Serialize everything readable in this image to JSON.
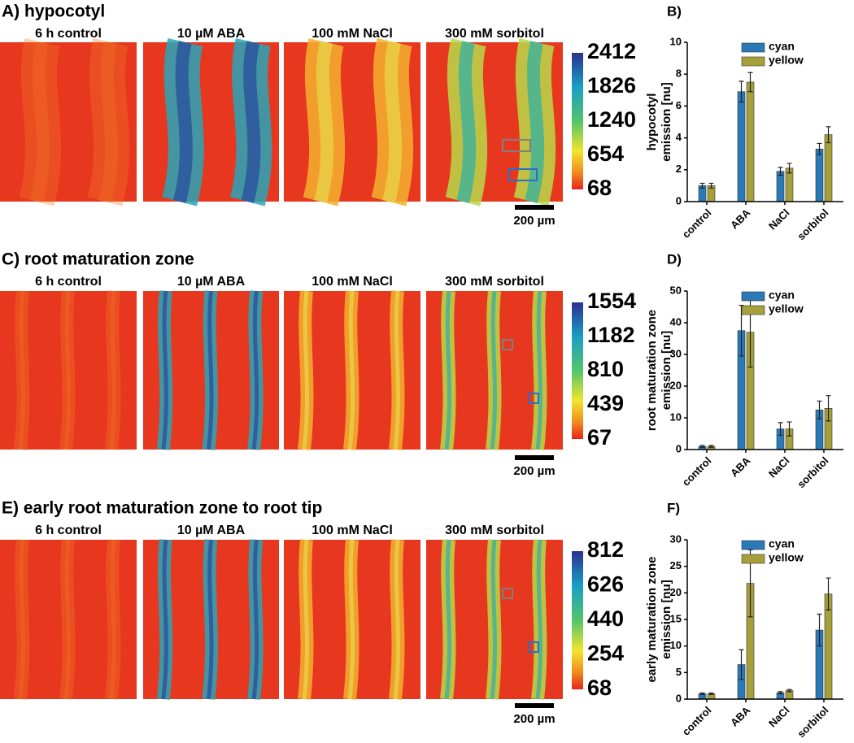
{
  "panels": [
    {
      "label": "A) hypocotyl",
      "images": [
        "6 h control",
        "10 µM ABA",
        "100 mM NaCl",
        "300 mM sorbitol"
      ],
      "clim": [
        68,
        2412
      ],
      "colorbar_ticks": [
        2412,
        1826,
        1240,
        654,
        68
      ],
      "scale_bar": "200 µm"
    },
    {
      "label": "C) root maturation zone",
      "images": [
        "6 h control",
        "10 µM ABA",
        "100 mM NaCl",
        "300 mM sorbitol"
      ],
      "clim": [
        67,
        1554
      ],
      "colorbar_ticks": [
        1554,
        1182,
        810,
        439,
        67
      ],
      "scale_bar": "200 µm"
    },
    {
      "label": "E) early root maturation zone to root tip",
      "images": [
        "6 h control",
        "10 µM ABA",
        "100 mM NaCl",
        "300 mM sorbitol"
      ],
      "clim": [
        68,
        812
      ],
      "colorbar_ticks": [
        812,
        626,
        440,
        254,
        68
      ],
      "scale_bar": "200 µm"
    }
  ],
  "chart_data": [
    {
      "type": "bar",
      "label": "B)",
      "ylabel": [
        "hypocotyl",
        "emission [nu]"
      ],
      "categories": [
        "control",
        "ABA",
        "NaCl",
        "sorbitol"
      ],
      "series": [
        {
          "name": "cyan",
          "color": "#2a7ab8",
          "values": [
            1.0,
            6.9,
            1.9,
            3.3
          ],
          "errors": [
            0.15,
            0.65,
            0.25,
            0.35
          ]
        },
        {
          "name": "yellow",
          "color": "#a6a03a",
          "values": [
            1.0,
            7.5,
            2.1,
            4.2
          ],
          "errors": [
            0.15,
            0.6,
            0.3,
            0.5
          ]
        }
      ],
      "ylim": [
        0,
        10
      ],
      "yticks": [
        0,
        2,
        4,
        6,
        8,
        10
      ]
    },
    {
      "type": "bar",
      "label": "D)",
      "ylabel": [
        "root maturation zone",
        "emission [nu]"
      ],
      "categories": [
        "control",
        "ABA",
        "NaCl",
        "sorbitol"
      ],
      "series": [
        {
          "name": "cyan",
          "color": "#2a7ab8",
          "values": [
            1,
            37.5,
            6.5,
            12.5
          ],
          "errors": [
            0.3,
            8,
            2,
            2.8
          ]
        },
        {
          "name": "yellow",
          "color": "#a6a03a",
          "values": [
            1,
            37,
            6.5,
            13
          ],
          "errors": [
            0.3,
            11,
            2.2,
            4
          ]
        }
      ],
      "ylim": [
        0,
        50
      ],
      "yticks": [
        0,
        10,
        20,
        30,
        40,
        50
      ]
    },
    {
      "type": "bar",
      "label": "F)",
      "ylabel": [
        "early maturation zone",
        "emission [nu]"
      ],
      "categories": [
        "control",
        "ABA",
        "NaCl",
        "sorbitol"
      ],
      "series": [
        {
          "name": "cyan",
          "color": "#2a7ab8",
          "values": [
            1,
            6.5,
            1.2,
            13
          ],
          "errors": [
            0.15,
            2.8,
            0.2,
            3
          ]
        },
        {
          "name": "yellow",
          "color": "#a6a03a",
          "values": [
            1,
            21.8,
            1.6,
            19.8
          ],
          "errors": [
            0.15,
            6.3,
            0.2,
            3
          ]
        }
      ],
      "ylim": [
        0,
        30
      ],
      "yticks": [
        0,
        5,
        10,
        15,
        20,
        25,
        30
      ]
    }
  ]
}
